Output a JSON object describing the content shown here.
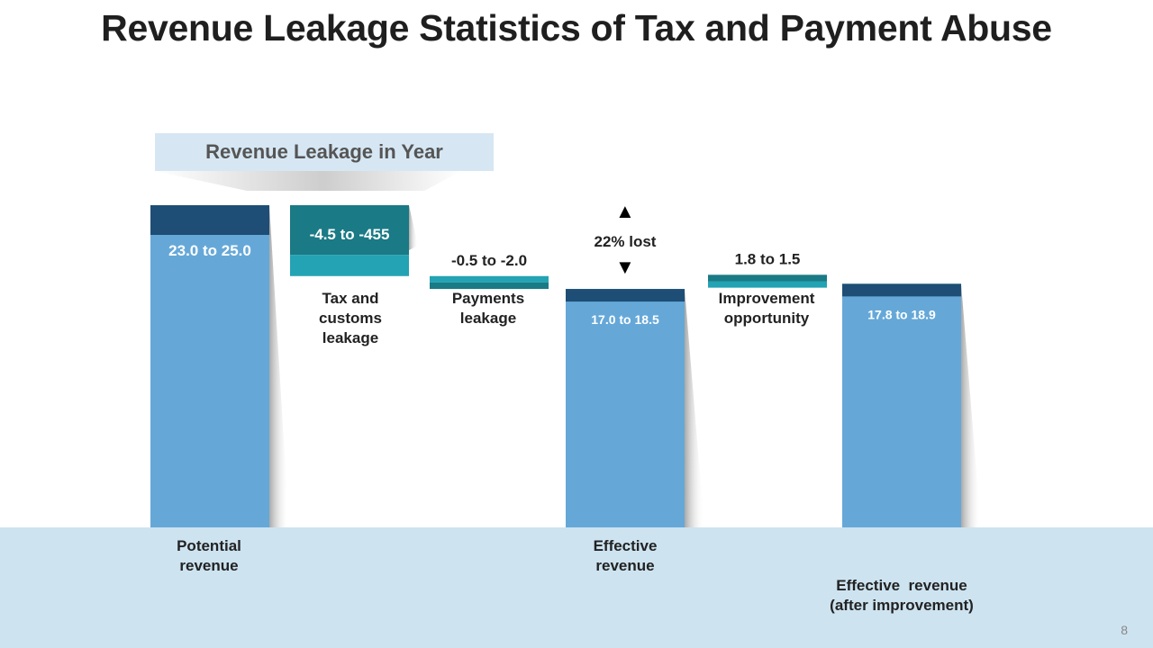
{
  "title": "Revenue Leakage Statistics of Tax and Payment Abuse",
  "subtitle": "Revenue Leakage in Year",
  "page_number": "8",
  "lost_label": "22% lost",
  "chart_data": {
    "type": "bar",
    "subtype": "waterfall",
    "title": "Revenue Leakage in Year",
    "categories": [
      "Potential revenue",
      "Tax and customs leakage",
      "Payments leakage",
      "Effective revenue",
      "Improvement opportunity",
      "Effective revenue (after improvement)"
    ],
    "bars": [
      {
        "name": "Potential revenue",
        "value_label": "23.0 to 25.0",
        "range": [
          23.0,
          25.0
        ],
        "kind": "total",
        "base": 0
      },
      {
        "name": "Tax and customs leakage",
        "value_label": "-4.5 to -455",
        "range": [
          -4.5,
          -455
        ],
        "kind": "decrease",
        "top": 25.0,
        "bottom": 19.5
      },
      {
        "name": "Payments leakage",
        "value_label": "-0.5 to -2.0",
        "range": [
          -0.5,
          -2.0
        ],
        "kind": "decrease",
        "top": 19.5,
        "bottom": 18.5
      },
      {
        "name": "Effective revenue",
        "value_label": "17.0 to 18.5",
        "range": [
          17.0,
          18.5
        ],
        "kind": "total",
        "base": 0
      },
      {
        "name": "Improvement opportunity",
        "value_label": "1.8 to 1.5",
        "range": [
          1.8,
          1.5
        ],
        "kind": "increase",
        "top": 19.6,
        "bottom": 18.6
      },
      {
        "name": "Effective revenue (after improvement)",
        "value_label": "17.8 to 18.9",
        "range": [
          17.8,
          18.9
        ],
        "kind": "total",
        "base": 0
      }
    ],
    "labels": {
      "potential": [
        "Potential",
        "revenue"
      ],
      "tax": [
        "Tax and",
        "customs",
        "leakage"
      ],
      "payments": [
        "Payments",
        "leakage"
      ],
      "effective": [
        "Effective",
        "revenue"
      ],
      "improvement": [
        "Improvement",
        "opportunity"
      ],
      "after": [
        "Effective  revenue",
        "(after improvement)"
      ]
    },
    "colors": {
      "bar": "#65a8d8",
      "cap": "#1e4e75",
      "teal_dark": "#1a7a85",
      "teal_light": "#23a3b3",
      "floor": "#cde3f0"
    },
    "ylim": [
      0,
      25.0
    ]
  }
}
